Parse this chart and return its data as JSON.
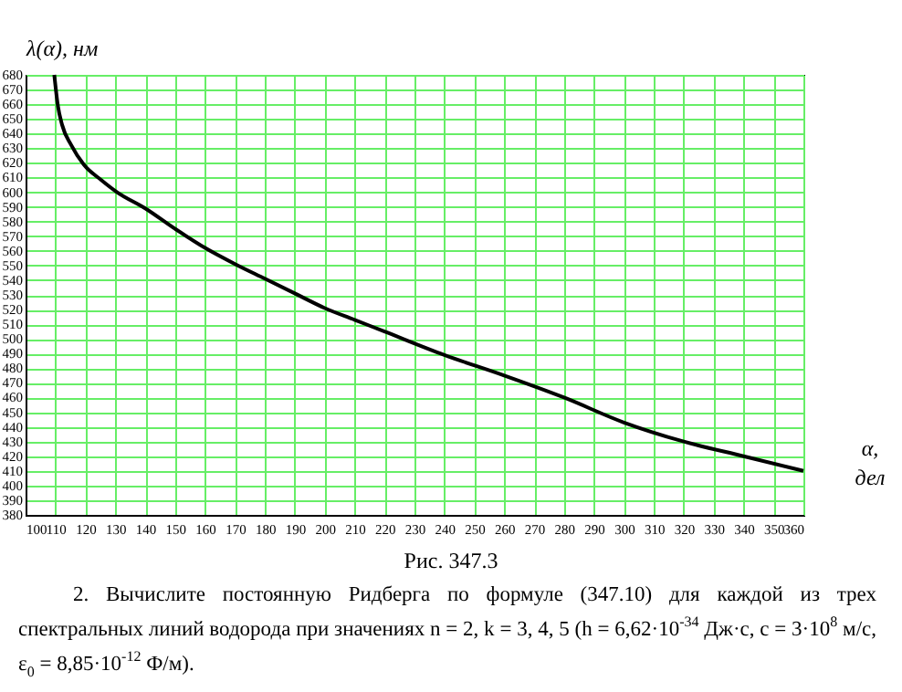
{
  "chart_data": {
    "type": "line",
    "xlabel": "α, дел",
    "ylabel": "λ(α), нм",
    "x": [
      109.6,
      110.8,
      112.2,
      115.3,
      119.4,
      125.5,
      130.6,
      140,
      150,
      160,
      170,
      180,
      190,
      200,
      210,
      220,
      240,
      260,
      280,
      300,
      320,
      340,
      360
    ],
    "series": [
      {
        "color": "#000000",
        "values": [
          680,
          659,
          646,
          632,
          619,
          608,
          600,
          589,
          575,
          562,
          551,
          541,
          531,
          521,
          513,
          505,
          489,
          475,
          460,
          443,
          430,
          420,
          410
        ]
      }
    ],
    "xlim": [
      100,
      360
    ],
    "xticks": [
      100,
      110,
      120,
      130,
      140,
      150,
      160,
      170,
      180,
      190,
      200,
      210,
      220,
      230,
      240,
      250,
      260,
      270,
      280,
      290,
      300,
      310,
      320,
      330,
      340,
      350,
      360
    ],
    "ylim": [
      380,
      680
    ],
    "yticks": [
      380,
      390,
      400,
      410,
      420,
      430,
      440,
      450,
      460,
      470,
      480,
      490,
      500,
      510,
      520,
      530,
      540,
      550,
      560,
      570,
      580,
      590,
      600,
      610,
      620,
      630,
      640,
      650,
      660,
      670,
      680
    ],
    "grid": true,
    "line_style": "solid",
    "annotations": [
      "Рис. 347.3",
      "2. Вычислите постоянную Ридберга по формуле (347.10) для каждой из трех спектральных линий водорода при значениях n = 2, k = 3, 4, 5 (h = 6,62·10$^{-34}$ Дж·с, c = 3·10$^{8}$ м/с, ε$_{0}$ = 8,85·10$^{-12}$ Ф/м)."
    ]
  }
}
